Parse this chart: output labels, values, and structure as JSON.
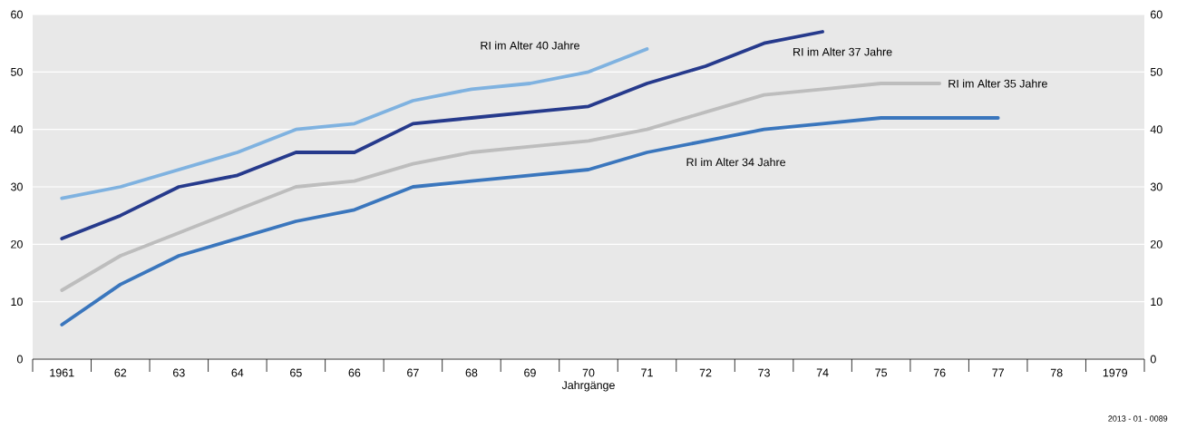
{
  "chart_data": {
    "type": "line",
    "xlabel": "Jahrgänge",
    "categories": [
      "1961",
      "62",
      "63",
      "64",
      "65",
      "66",
      "67",
      "68",
      "69",
      "70",
      "71",
      "72",
      "73",
      "74",
      "75",
      "76",
      "77",
      "78",
      "1979"
    ],
    "series": [
      {
        "name": "RI im Alter 40 Jahre",
        "color": "#7fb2e0",
        "values": [
          28,
          30,
          33,
          36,
          40,
          41,
          45,
          47,
          48,
          50,
          54,
          null,
          null,
          null,
          null,
          null,
          null,
          null,
          null
        ]
      },
      {
        "name": "RI im Alter 37 Jahre",
        "color": "#263a8c",
        "values": [
          21,
          25,
          30,
          32,
          36,
          36,
          41,
          42,
          43,
          44,
          48,
          51,
          55,
          57,
          null,
          null,
          null,
          null,
          null
        ]
      },
      {
        "name": "RI im Alter 35 Jahre",
        "color": "#bdbdbd",
        "values": [
          12,
          18,
          22,
          26,
          30,
          31,
          34,
          36,
          37,
          38,
          40,
          43,
          46,
          47,
          48,
          48,
          null,
          null,
          null
        ]
      },
      {
        "name": "RI im Alter 34 Jahre",
        "color": "#3a76bd",
        "values": [
          6,
          13,
          18,
          21,
          24,
          26,
          30,
          31,
          32,
          33,
          36,
          38,
          40,
          41,
          42,
          42,
          42,
          null,
          null
        ]
      }
    ],
    "ylim": [
      0,
      60
    ],
    "yticks": [
      0,
      10,
      20,
      30,
      40,
      50,
      60
    ],
    "y2lim": [
      0,
      60
    ],
    "y2ticks": [
      0,
      10,
      20,
      30,
      40,
      50,
      60
    ],
    "grid": "y",
    "marker": "none",
    "line_style": "solid",
    "annotations": [
      "2013 - 01 - 0089"
    ]
  }
}
